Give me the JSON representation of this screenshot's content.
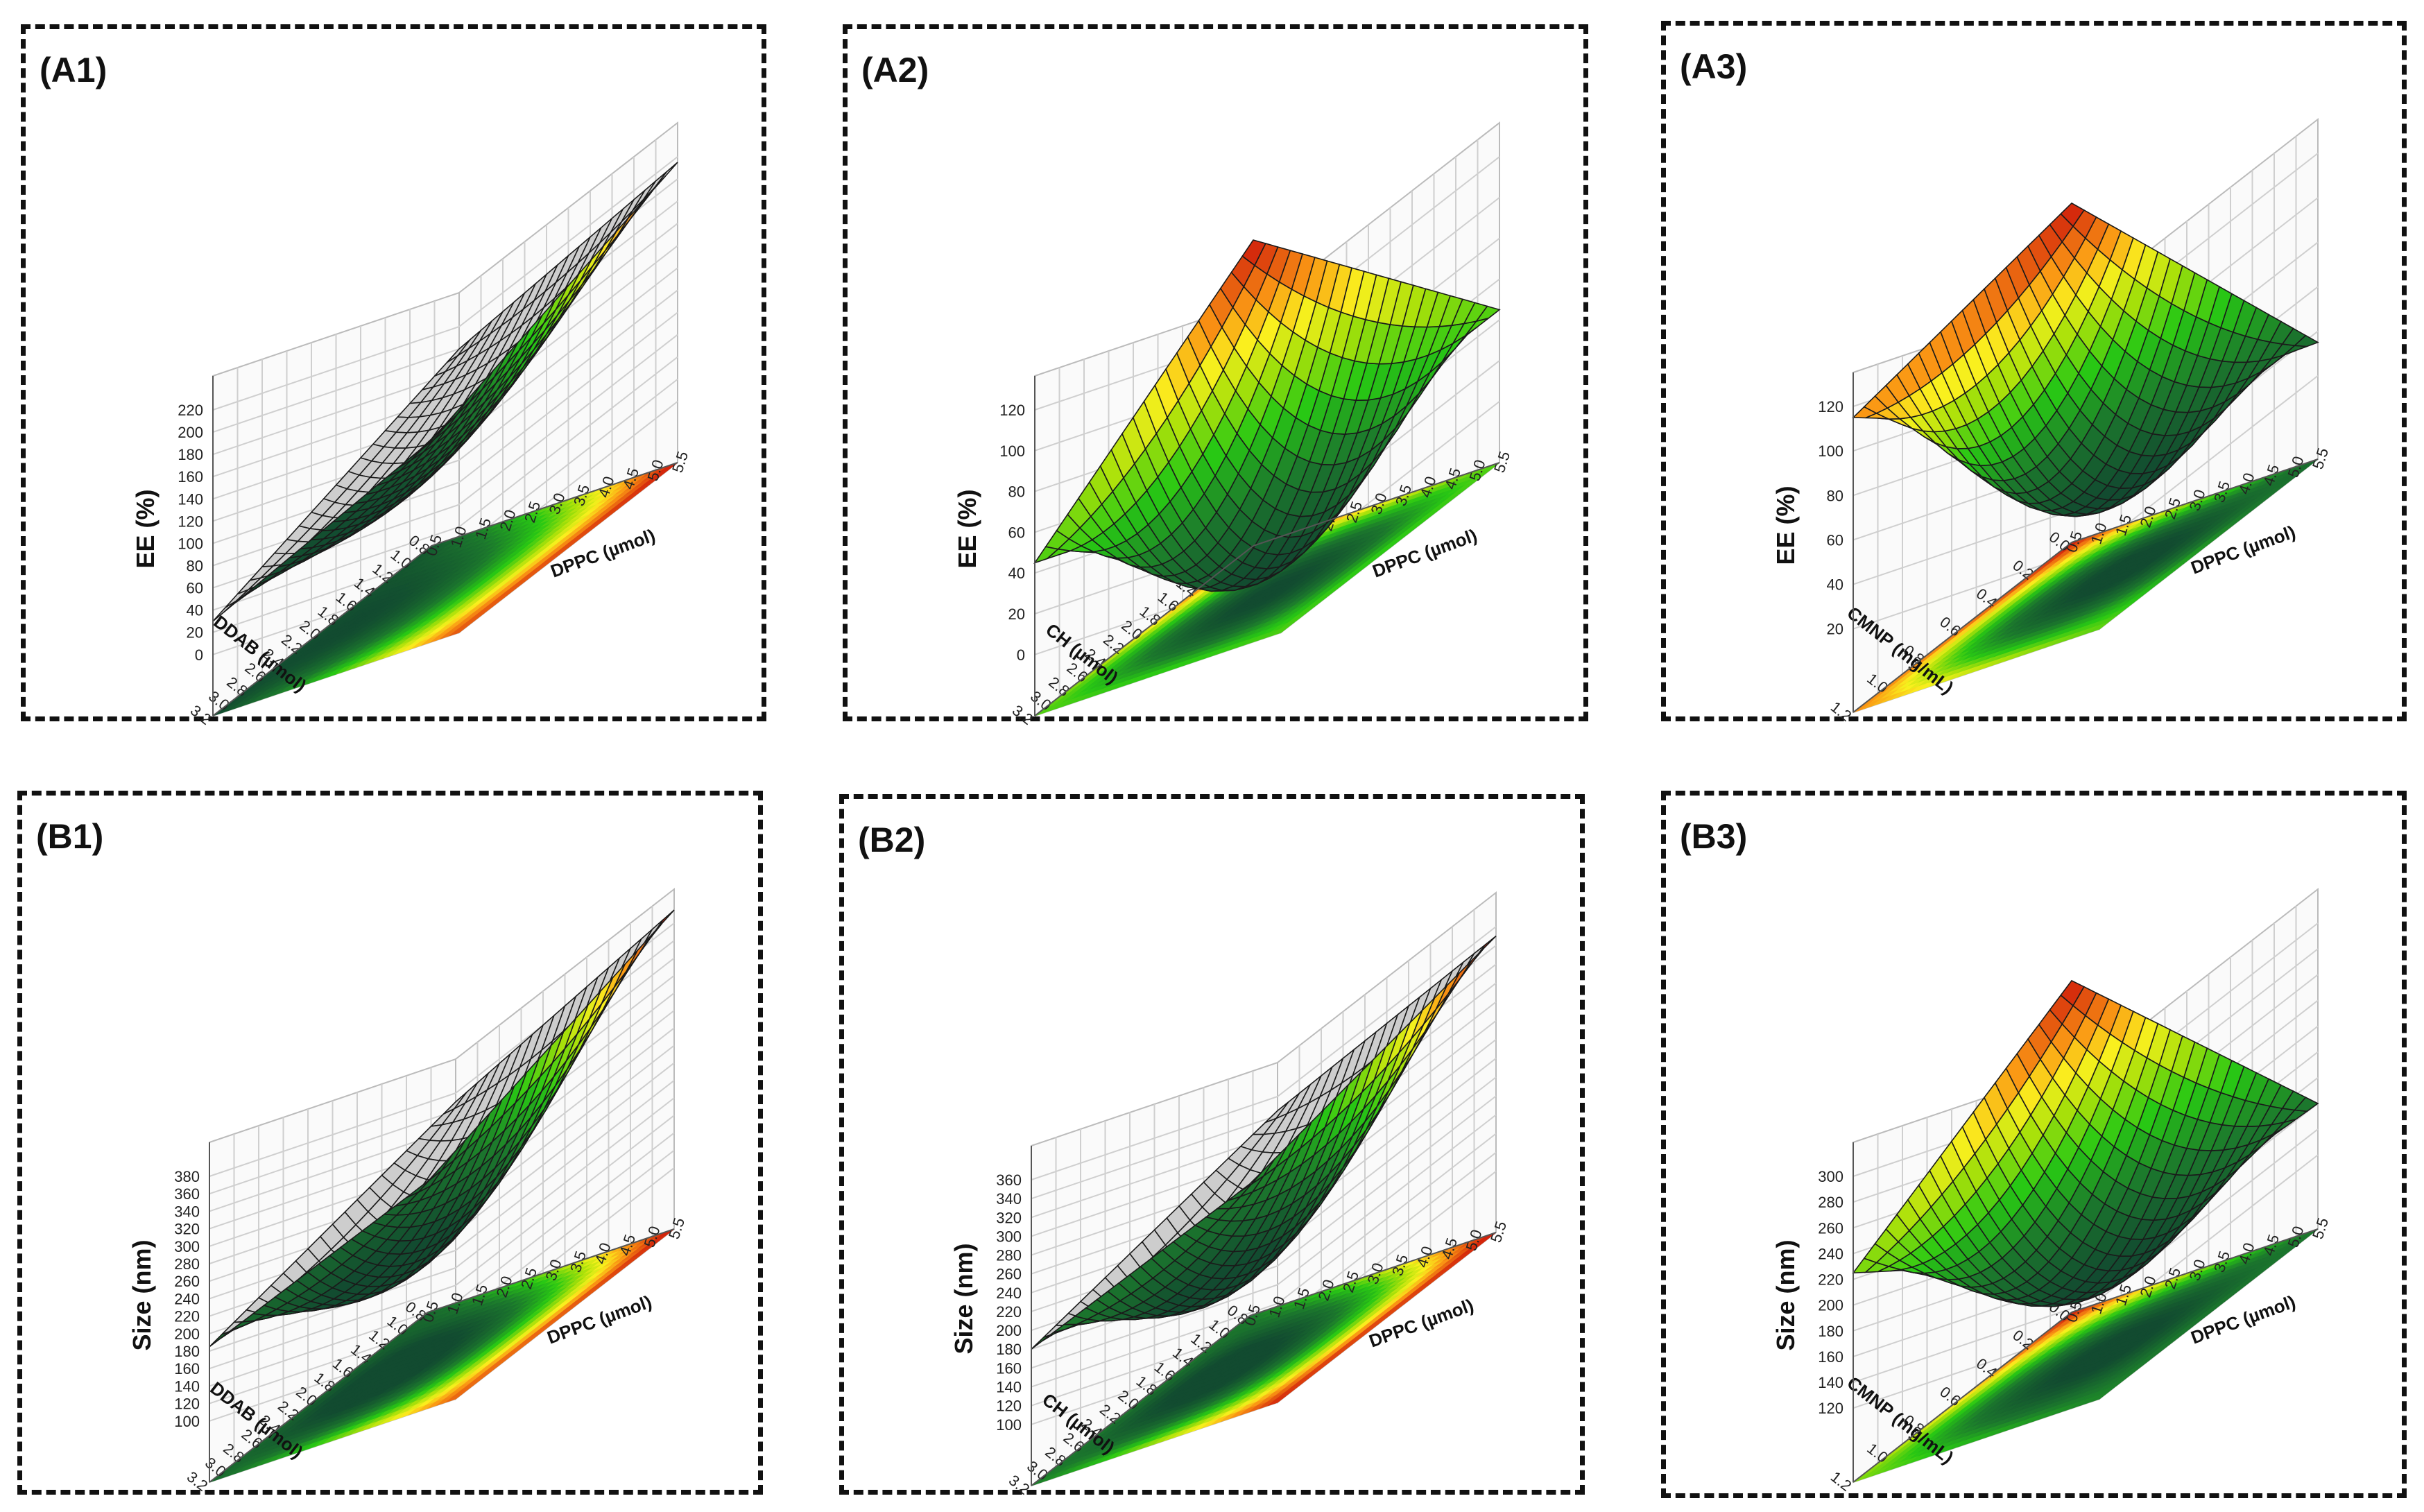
{
  "chart_data": [
    {
      "id": "A1",
      "type": "surface3d",
      "panel_label": "(A1)",
      "zlabel": "EE (%)",
      "xlabel": "DPPC (µmol)",
      "ylabel": "DDAB (µmol)",
      "zticks": [
        "0",
        "20",
        "40",
        "60",
        "80",
        "100",
        "120",
        "140",
        "160",
        "180",
        "200",
        "220"
      ],
      "zlim": [
        0,
        220
      ],
      "xticks": [
        "0.5",
        "1.0",
        "1.5",
        "2.0",
        "2.5",
        "3.0",
        "3.5",
        "4.0",
        "4.5",
        "5.0",
        "5.5"
      ],
      "yticks": [
        "0.8",
        "1.0",
        "1.2",
        "1.4",
        "1.6",
        "1.8",
        "2.0",
        "2.2",
        "2.4",
        "2.6",
        "2.8",
        "3.0",
        "3.2"
      ],
      "corner_values": {
        "low_x_low_y": 40,
        "high_x_low_y": 215,
        "low_x_high_y": 30,
        "high_x_high_y": 200,
        "center": 60
      }
    },
    {
      "id": "A2",
      "type": "surface3d",
      "panel_label": "(A2)",
      "zlabel": "EE (%)",
      "xlabel": "DPPC (µmol)",
      "ylabel": "CH (µmol)",
      "zticks": [
        "0",
        "20",
        "40",
        "60",
        "80",
        "100",
        "120"
      ],
      "zlim": [
        0,
        120
      ],
      "xticks": [
        "0.5",
        "1.0",
        "1.5",
        "2.0",
        "2.5",
        "3.0",
        "3.5",
        "4.0",
        "4.5",
        "5.0",
        "5.5"
      ],
      "yticks": [
        "0.8",
        "1.0",
        "1.2",
        "1.4",
        "1.6",
        "1.8",
        "2.0",
        "2.2",
        "2.4",
        "2.6",
        "2.8",
        "3.0",
        "3.2"
      ],
      "corner_values": {
        "low_x_low_y": 120,
        "high_x_low_y": 45,
        "low_x_high_y": 45,
        "high_x_high_y": 45,
        "center": -20
      }
    },
    {
      "id": "A3",
      "type": "surface3d",
      "panel_label": "(A3)",
      "zlabel": "EE (%)",
      "xlabel": "DPPC (µmol)",
      "ylabel": "CMNP (mg/mL)",
      "zticks": [
        "20",
        "40",
        "60",
        "80",
        "100",
        "120"
      ],
      "zlim": [
        10,
        120
      ],
      "xticks": [
        "0.5",
        "1.0",
        "1.5",
        "2.0",
        "2.5",
        "3.0",
        "3.5",
        "4.0",
        "4.5",
        "5.0",
        "5.5"
      ],
      "yticks": [
        "0.0",
        "0.2",
        "0.4",
        "0.6",
        "0.8",
        "1.0",
        "1.2"
      ],
      "corner_values": {
        "low_x_low_y": 135,
        "high_x_low_y": 35,
        "low_x_high_y": 115,
        "high_x_high_y": 75,
        "center": 18
      }
    },
    {
      "id": "B1",
      "type": "surface3d",
      "panel_label": "(B1)",
      "zlabel": "Size (nm)",
      "xlabel": "DPPC (µmol)",
      "ylabel": "DDAB (µmol)",
      "zticks": [
        "100",
        "120",
        "140",
        "160",
        "180",
        "200",
        "220",
        "240",
        "260",
        "280",
        "300",
        "320",
        "340",
        "360",
        "380"
      ],
      "zlim": [
        100,
        380
      ],
      "xticks": [
        "0.5",
        "1.0",
        "1.5",
        "2.0",
        "2.5",
        "3.0",
        "3.5",
        "4.0",
        "4.5",
        "5.0",
        "5.5"
      ],
      "yticks": [
        "0.8",
        "1.0",
        "1.2",
        "1.4",
        "1.6",
        "1.8",
        "2.0",
        "2.2",
        "2.4",
        "2.6",
        "2.8",
        "3.0",
        "3.2"
      ],
      "corner_values": {
        "low_x_low_y": 180,
        "high_x_low_y": 395,
        "low_x_high_y": 185,
        "high_x_high_y": 370,
        "center": 150
      }
    },
    {
      "id": "B2",
      "type": "surface3d",
      "panel_label": "(B2)",
      "zlabel": "Size (nm)",
      "xlabel": "DPPC (µmol)",
      "ylabel": "CH (µmol)",
      "zticks": [
        "100",
        "120",
        "140",
        "160",
        "180",
        "200",
        "220",
        "240",
        "260",
        "280",
        "300",
        "320",
        "340",
        "360"
      ],
      "zlim": [
        100,
        360
      ],
      "xticks": [
        "0.5",
        "1.0",
        "1.5",
        "2.0",
        "2.5",
        "3.0",
        "3.5",
        "4.0",
        "4.5",
        "5.0",
        "5.5"
      ],
      "yticks": [
        "0.8",
        "1.0",
        "1.2",
        "1.4",
        "1.6",
        "1.8",
        "2.0",
        "2.2",
        "2.4",
        "2.6",
        "2.8",
        "3.0",
        "3.2"
      ],
      "corner_values": {
        "low_x_low_y": 175,
        "high_x_low_y": 350,
        "low_x_high_y": 180,
        "high_x_high_y": 345,
        "center": 130
      }
    },
    {
      "id": "B3",
      "type": "surface3d",
      "panel_label": "(B3)",
      "zlabel": "Size (nm)",
      "xlabel": "DPPC (µmol)",
      "ylabel": "CMNP (mg/mL)",
      "zticks": [
        "120",
        "140",
        "160",
        "180",
        "200",
        "220",
        "240",
        "260",
        "280",
        "300"
      ],
      "zlim": [
        110,
        300
      ],
      "xticks": [
        "0.5",
        "1.0",
        "1.5",
        "2.0",
        "2.5",
        "3.0",
        "3.5",
        "4.0",
        "4.5",
        "5.0",
        "5.5"
      ],
      "yticks": [
        "0.0",
        "0.2",
        "0.4",
        "0.6",
        "0.8",
        "1.0",
        "1.2"
      ],
      "corner_values": {
        "low_x_low_y": 320,
        "high_x_low_y": 160,
        "low_x_high_y": 225,
        "high_x_high_y": 170,
        "center": 120
      }
    }
  ]
}
